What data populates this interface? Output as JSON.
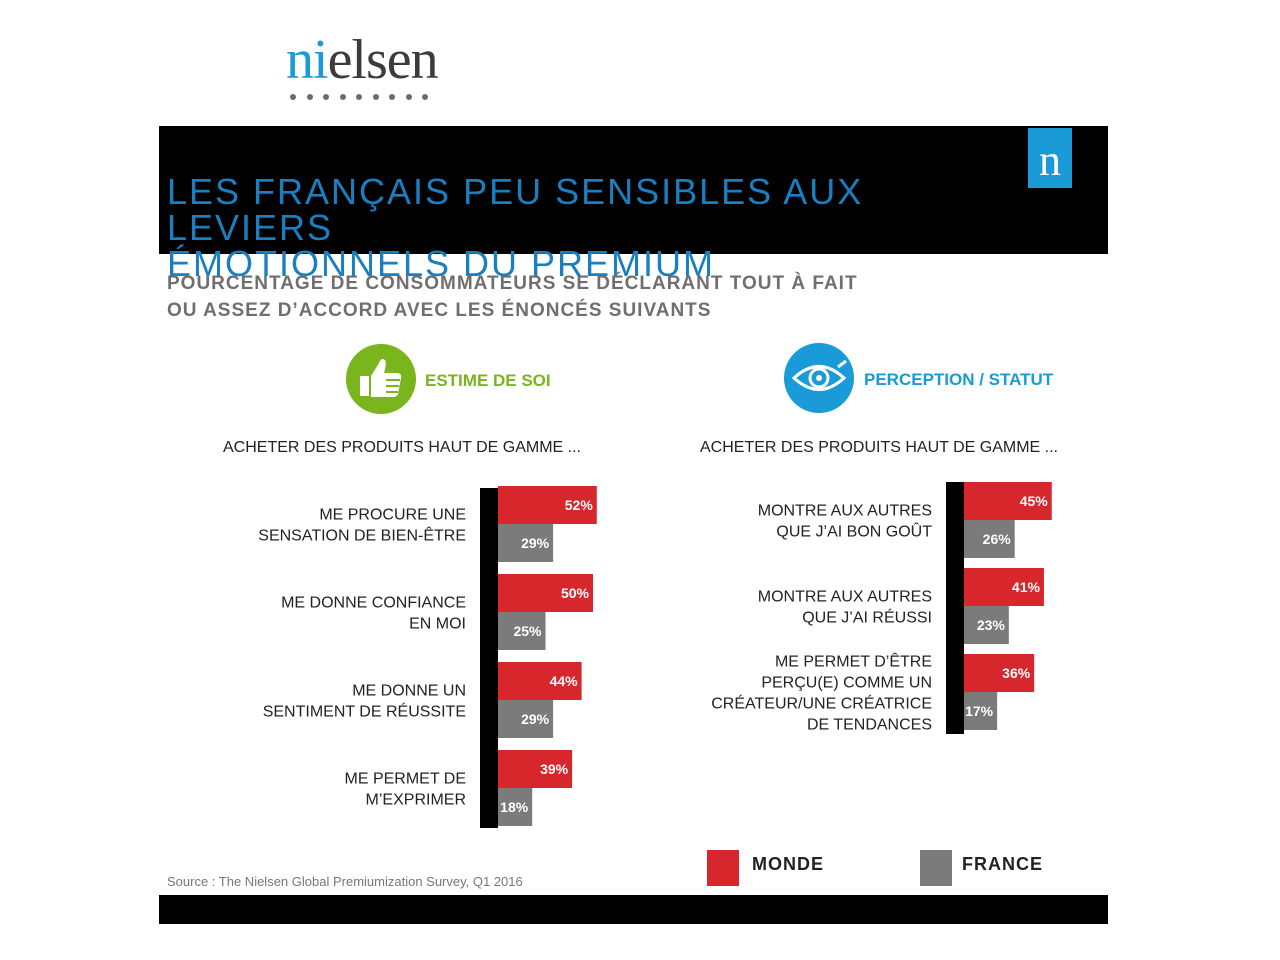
{
  "logo": {
    "accent": "ni",
    "rest": "elsen"
  },
  "banner": {
    "title_line1": "LES FRANÇAIS PEU SENSIBLES AUX LEVIERS",
    "title_line2": "ÉMOTIONNELS DU PREMIUM",
    "mark": "n"
  },
  "subtitle": {
    "line1": "POURCENTAGE DE CONSOMMATEURS SE DÉCLARANT TOUT À FAIT",
    "line2": "OU ASSEZ D’ACCORD AVEC LES ÉNONCÉS SUIVANTS"
  },
  "sections": {
    "left": {
      "label": "ESTIME DE SOI",
      "icon": "thumbs-up-icon",
      "color": "#7ab51d",
      "question": "ACHETER DES PRODUITS HAUT DE GAMME ..."
    },
    "right": {
      "label": "PERCEPTION / STATUT",
      "icon": "eye-icon",
      "color": "#1a9ad6",
      "question": "ACHETER DES PRODUITS HAUT DE GAMME ..."
    }
  },
  "colors": {
    "monde": "#d7272d",
    "france": "#7b7b7b",
    "axis": "#000000"
  },
  "legend": {
    "monde": "MONDE",
    "france": "FRANCE"
  },
  "source": "Source : The Nielsen Global Premiumization Survey, Q1 2016",
  "chart_data": [
    {
      "type": "bar",
      "orientation": "horizontal",
      "section": "ESTIME DE SOI",
      "categories": [
        [
          "ME PROCURE UNE",
          "SENSATION DE BIEN-ÊTRE"
        ],
        [
          "ME DONNE CONFIANCE",
          "EN MOI"
        ],
        [
          "ME DONNE UN",
          "SENTIMENT DE RÉUSSITE"
        ],
        [
          "ME PERMET DE",
          "M’EXPRIMER"
        ]
      ],
      "series": [
        {
          "name": "MONDE",
          "values": [
            52,
            50,
            44,
            39
          ]
        },
        {
          "name": "FRANCE",
          "values": [
            29,
            25,
            29,
            18
          ]
        }
      ],
      "value_labels": [
        [
          "52%",
          "50%",
          "44%",
          "39%"
        ],
        [
          "29%",
          "25%",
          "29%",
          "18%"
        ]
      ],
      "unit": "%"
    },
    {
      "type": "bar",
      "orientation": "horizontal",
      "section": "PERCEPTION / STATUT",
      "categories": [
        [
          "MONTRE AUX AUTRES",
          "QUE J’AI BON GOÛT"
        ],
        [
          "MONTRE AUX AUTRES",
          "QUE J’AI RÉUSSI"
        ],
        [
          "ME PERMET D’ÊTRE",
          "PERÇU(E) COMME UN",
          "CRÉATEUR/UNE CRÉATRICE",
          "DE TENDANCES"
        ]
      ],
      "series": [
        {
          "name": "MONDE",
          "values": [
            45,
            41,
            36
          ]
        },
        {
          "name": "FRANCE",
          "values": [
            26,
            23,
            17
          ]
        }
      ],
      "value_labels": [
        [
          "45%",
          "41%",
          "36%"
        ],
        [
          "26%",
          "23%",
          "17%"
        ]
      ],
      "unit": "%"
    }
  ]
}
